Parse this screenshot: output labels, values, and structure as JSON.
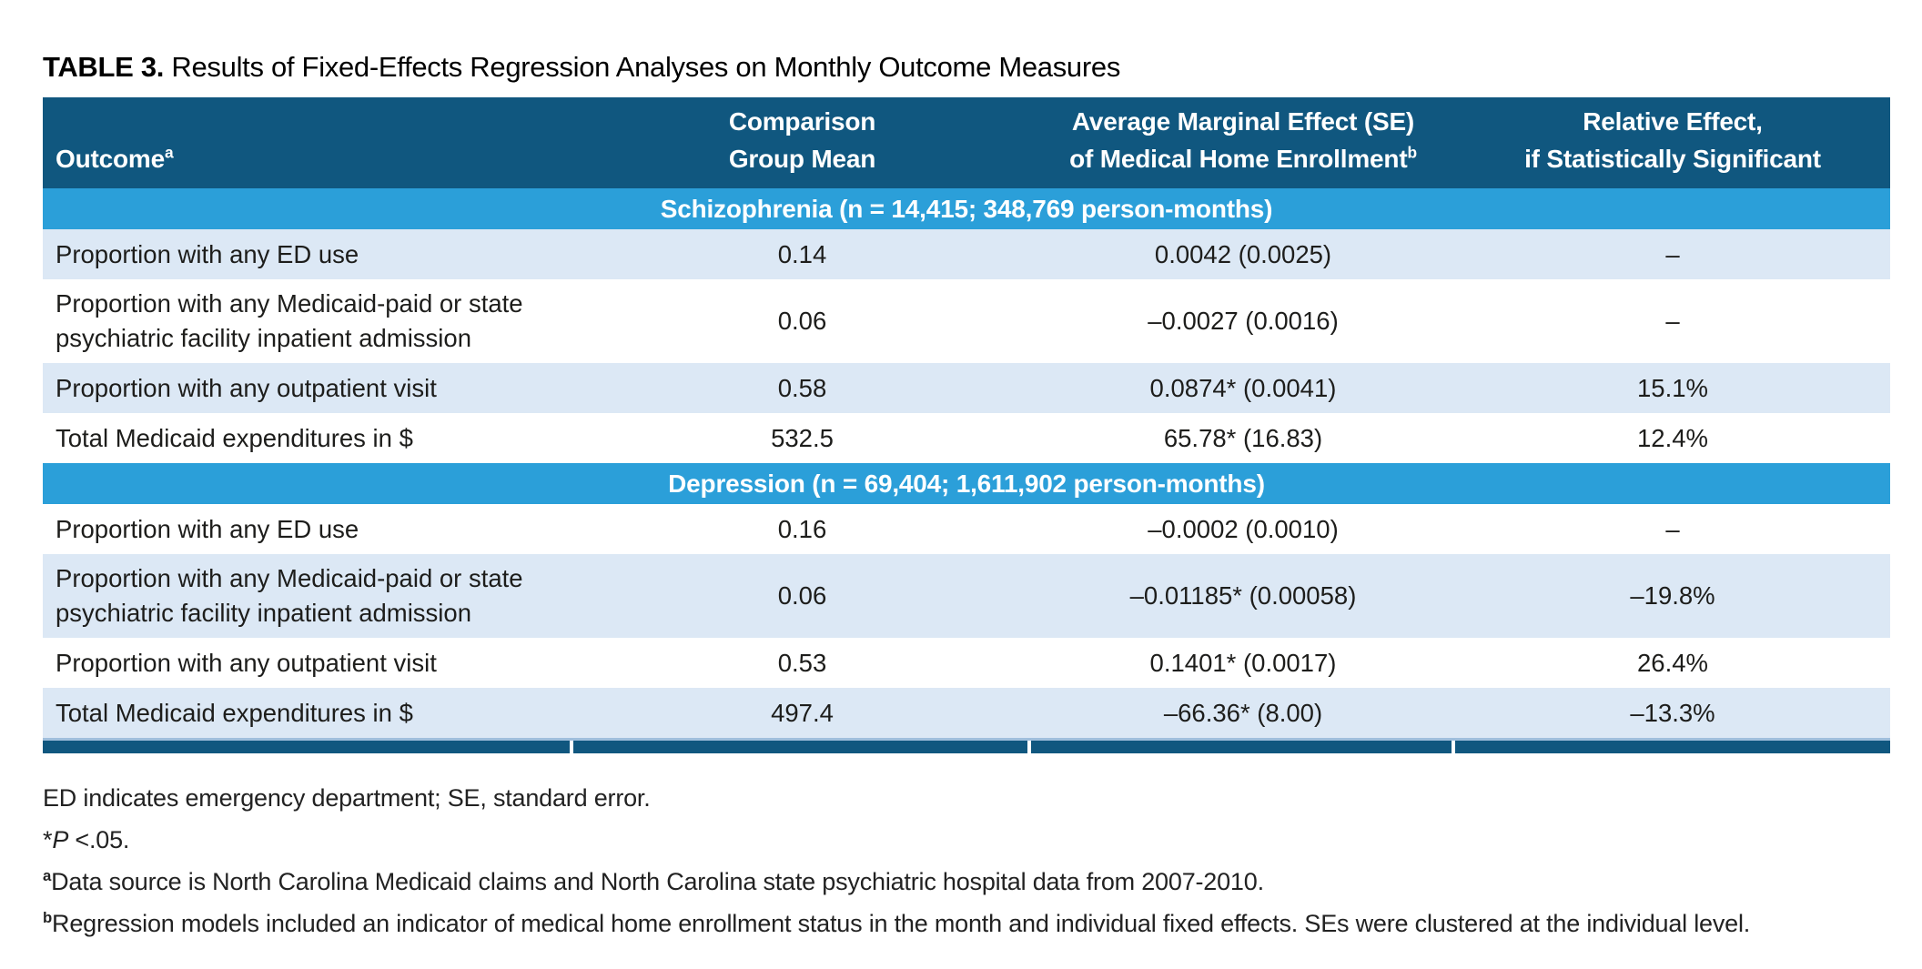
{
  "title": {
    "label": "TABLE 3.",
    "text": " Results of Fixed-Effects Regression Analyses on Monthly Outcome Measures"
  },
  "colors": {
    "header_blue": "#10577F",
    "section_band_blue": "#2B9FD9",
    "row_shade_blue": "#DCE8F5"
  },
  "header": {
    "outcome": "Outcome",
    "outcome_sup": "a",
    "mean_line1": "Comparison",
    "mean_line2": "Group Mean",
    "ame_line1": "Average Marginal Effect (SE)",
    "ame_line2": "of Medical Home Enrollment",
    "ame_sup": "b",
    "rel_line1": "Relative Effect,",
    "rel_line2": "if Statistically Significant"
  },
  "sections": [
    {
      "band": "Schizophrenia (n = 14,415; 348,769 person-months)",
      "rows": [
        {
          "outcome": "Proportion with any ED use",
          "mean": "0.14",
          "ame": "0.0042 (0.0025)",
          "relative": "–"
        },
        {
          "outcome": "Proportion with any Medicaid-paid or state psychiatric facility inpatient admission",
          "mean": "0.06",
          "ame": "–0.0027 (0.0016)",
          "relative": "–"
        },
        {
          "outcome": "Proportion with any outpatient visit",
          "mean": "0.58",
          "ame": "0.0874* (0.0041)",
          "relative": "15.1%"
        },
        {
          "outcome": "Total Medicaid expenditures in $",
          "mean": "532.5",
          "ame": "65.78* (16.83)",
          "relative": "12.4%"
        }
      ]
    },
    {
      "band": "Depression (n = 69,404; 1,611,902 person-months)",
      "rows": [
        {
          "outcome": "Proportion with any ED use",
          "mean": "0.16",
          "ame": "–0.0002 (0.0010)",
          "relative": "–"
        },
        {
          "outcome": "Proportion with any Medicaid-paid or state psychiatric facility inpatient admission",
          "mean": "0.06",
          "ame": "–0.01185* (0.00058)",
          "relative": "–19.8%"
        },
        {
          "outcome": "Proportion with any outpatient visit",
          "mean": "0.53",
          "ame": "0.1401* (0.0017)",
          "relative": "26.4%"
        },
        {
          "outcome": "Total Medicaid expenditures in $",
          "mean": "497.4",
          "ame": "–66.36* (8.00)",
          "relative": "–13.3%"
        }
      ]
    }
  ],
  "footnotes": {
    "abbrev": "ED indicates emergency department; SE, standard error.",
    "sig": {
      "star": "*",
      "p": "P",
      "rest": " <.05."
    },
    "a": {
      "sup": "a",
      "text": "Data source is North Carolina Medicaid claims and North Carolina state psychiatric hospital data from 2007-2010."
    },
    "b": {
      "sup": "b",
      "text": "Regression models included an indicator of medical home enrollment status in the month and individual fixed effects. SEs were clustered at the individual level."
    }
  }
}
